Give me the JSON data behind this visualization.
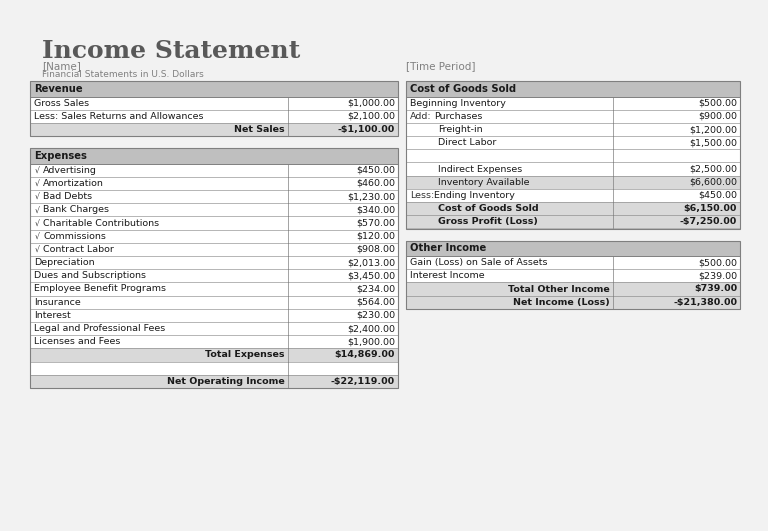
{
  "title": "Income Statement",
  "subtitle_name": "[Name]",
  "subtitle_fs": "Financial Statements in U.S. Dollars",
  "time_period": "[Time Period]",
  "page_bg": "#f2f2f2",
  "header_bg": "#bfbfbf",
  "bold_row_bg": "#d9d9d9",
  "border_color": "#7f7f7f",
  "revenue": {
    "header": "Revenue",
    "rows": [
      {
        "label": "Gross Sales",
        "indent": 0,
        "check": false,
        "value": "$1,000.00",
        "bold": false,
        "bg": "white",
        "right_label": false
      },
      {
        "label": "Less: Sales Returns and Allowances",
        "indent": 0,
        "check": false,
        "value": "$2,100.00",
        "bold": false,
        "bg": "white",
        "right_label": false
      },
      {
        "label": "Net Sales",
        "indent": 0,
        "check": false,
        "value": "-$1,100.00",
        "bold": true,
        "bg": "#d9d9d9",
        "right_label": true
      }
    ]
  },
  "expenses": {
    "header": "Expenses",
    "rows": [
      {
        "label": "Advertising",
        "check": true,
        "value": "$450.00",
        "bold": false,
        "bg": "white",
        "right_label": false,
        "prefix": ""
      },
      {
        "label": "Amortization",
        "check": true,
        "value": "$460.00",
        "bold": false,
        "bg": "white",
        "right_label": false,
        "prefix": ""
      },
      {
        "label": "Bad Debts",
        "check": true,
        "value": "$1,230.00",
        "bold": false,
        "bg": "white",
        "right_label": false,
        "prefix": ""
      },
      {
        "label": "Bank Charges",
        "check": true,
        "value": "$340.00",
        "bold": false,
        "bg": "white",
        "right_label": false,
        "prefix": ""
      },
      {
        "label": "Charitable Contributions",
        "check": true,
        "value": "$570.00",
        "bold": false,
        "bg": "white",
        "right_label": false,
        "prefix": ""
      },
      {
        "label": "Commissions",
        "check": true,
        "value": "$120.00",
        "bold": false,
        "bg": "white",
        "right_label": false,
        "prefix": ""
      },
      {
        "label": "Contract Labor",
        "check": true,
        "value": "$908.00",
        "bold": false,
        "bg": "white",
        "right_label": false,
        "prefix": ""
      },
      {
        "label": "Depreciation",
        "check": false,
        "value": "$2,013.00",
        "bold": false,
        "bg": "white",
        "right_label": false,
        "prefix": ""
      },
      {
        "label": "Dues and Subscriptions",
        "check": false,
        "value": "$3,450.00",
        "bold": false,
        "bg": "white",
        "right_label": false,
        "prefix": ""
      },
      {
        "label": "Employee Benefit Programs",
        "check": false,
        "value": "$234.00",
        "bold": false,
        "bg": "white",
        "right_label": false,
        "prefix": ""
      },
      {
        "label": "Insurance",
        "check": false,
        "value": "$564.00",
        "bold": false,
        "bg": "white",
        "right_label": false,
        "prefix": ""
      },
      {
        "label": "Interest",
        "check": false,
        "value": "$230.00",
        "bold": false,
        "bg": "white",
        "right_label": false,
        "prefix": ""
      },
      {
        "label": "Legal and Professional Fees",
        "check": false,
        "value": "$2,400.00",
        "bold": false,
        "bg": "white",
        "right_label": false,
        "prefix": ""
      },
      {
        "label": "Licenses and Fees",
        "check": false,
        "value": "$1,900.00",
        "bold": false,
        "bg": "white",
        "right_label": false,
        "prefix": ""
      },
      {
        "label": "Total Expenses",
        "check": false,
        "value": "$14,869.00",
        "bold": true,
        "bg": "#d9d9d9",
        "right_label": true,
        "prefix": ""
      },
      {
        "label": "",
        "check": false,
        "value": "",
        "bold": false,
        "bg": "white",
        "right_label": false,
        "prefix": ""
      },
      {
        "label": "Net Operating Income",
        "check": false,
        "value": "-$22,119.00",
        "bold": true,
        "bg": "#d9d9d9",
        "right_label": true,
        "prefix": ""
      }
    ]
  },
  "cogs": {
    "header": "Cost of Goods Sold",
    "rows": [
      {
        "label": "Beginning Inventory",
        "value": "$500.00",
        "bold": false,
        "bg": "white",
        "right_label": false,
        "prefix": "",
        "indent2": 0
      },
      {
        "label": "Purchases",
        "value": "$900.00",
        "bold": false,
        "bg": "white",
        "right_label": false,
        "prefix": "Add:",
        "indent2": 1
      },
      {
        "label": "Freight-in",
        "value": "$1,200.00",
        "bold": false,
        "bg": "white",
        "right_label": false,
        "prefix": "",
        "indent2": 2
      },
      {
        "label": "Direct Labor",
        "value": "$1,500.00",
        "bold": false,
        "bg": "white",
        "right_label": false,
        "prefix": "",
        "indent2": 2
      },
      {
        "label": "",
        "value": "",
        "bold": false,
        "bg": "white",
        "right_label": false,
        "prefix": "",
        "indent2": 0
      },
      {
        "label": "Indirect Expenses",
        "value": "$2,500.00",
        "bold": false,
        "bg": "white",
        "right_label": false,
        "prefix": "",
        "indent2": 2
      },
      {
        "label": "Inventory Available",
        "value": "$6,600.00",
        "bold": false,
        "bg": "#d9d9d9",
        "right_label": false,
        "prefix": "",
        "indent2": 2
      },
      {
        "label": "Ending Inventory",
        "value": "$450.00",
        "bold": false,
        "bg": "white",
        "right_label": false,
        "prefix": "Less:",
        "indent2": 1
      },
      {
        "label": "Cost of Goods Sold",
        "value": "$6,150.00",
        "bold": true,
        "bg": "#d9d9d9",
        "right_label": false,
        "prefix": "",
        "indent2": 2
      },
      {
        "label": "Gross Profit (Loss)",
        "value": "-$7,250.00",
        "bold": true,
        "bg": "#d9d9d9",
        "right_label": false,
        "prefix": "",
        "indent2": 2
      }
    ]
  },
  "other_income": {
    "header": "Other Income",
    "rows": [
      {
        "label": "Gain (Loss) on Sale of Assets",
        "value": "$500.00",
        "bold": false,
        "bg": "white",
        "right_label": false
      },
      {
        "label": "Interest Income",
        "value": "$239.00",
        "bold": false,
        "bg": "white",
        "right_label": false
      },
      {
        "label": "Total Other Income",
        "value": "$739.00",
        "bold": true,
        "bg": "#d9d9d9",
        "right_label": true
      },
      {
        "label": "Net Income (Loss)",
        "value": "-$21,380.00",
        "bold": true,
        "bg": "#d9d9d9",
        "right_label": true
      }
    ]
  }
}
